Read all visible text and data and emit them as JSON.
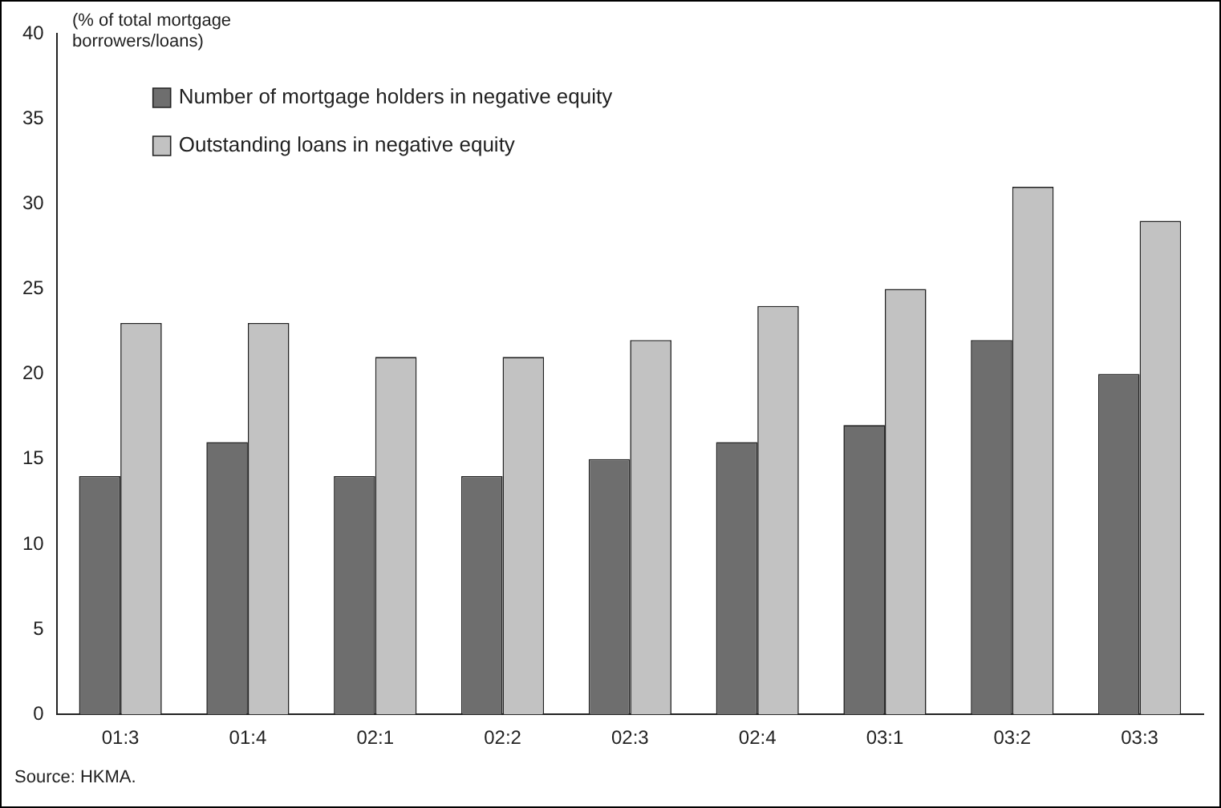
{
  "chart_data": {
    "type": "bar",
    "ylabel": "(% of total mortgage borrowers/loans)",
    "categories": [
      "01:3",
      "01:4",
      "02:1",
      "02:2",
      "02:3",
      "02:4",
      "03:1",
      "03:2",
      "03:3"
    ],
    "series": [
      {
        "name": "Number of mortgage holders in negative equity",
        "color": "#6e6e6e",
        "values": [
          14,
          16,
          14,
          14,
          15,
          16,
          17,
          22,
          20
        ]
      },
      {
        "name": "Outstanding loans in negative equity",
        "color": "#c2c2c2",
        "values": [
          23,
          23,
          21,
          21,
          22,
          24,
          25,
          31,
          29
        ]
      }
    ],
    "ylim": [
      0,
      40
    ],
    "yticks": [
      0,
      5,
      10,
      15,
      20,
      25,
      30,
      35,
      40
    ],
    "grid": false,
    "legend": "top left",
    "annotations": [
      "Source: HKMA."
    ]
  }
}
